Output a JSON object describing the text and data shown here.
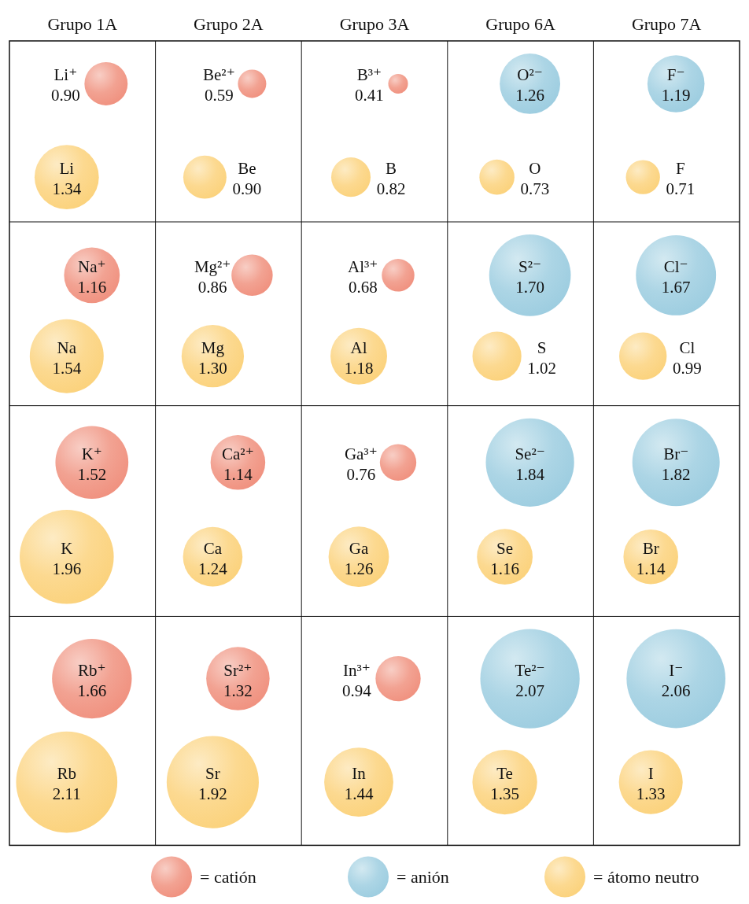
{
  "chart_data": {
    "type": "other",
    "annotations": [
      "Grupo 1A",
      "Grupo 2A",
      "Grupo 3A",
      "Grupo 6A",
      "Grupo 7A"
    ],
    "data_labels": true,
    "legend": "bottom",
    "categories": [
      "Li⁺",
      "Be²⁺",
      "B³⁺",
      "O²⁻",
      "F⁻",
      "Li",
      "Be",
      "B",
      "O",
      "F",
      "Na⁺",
      "Mg²⁺",
      "Al³⁺",
      "S²⁻",
      "Cl⁻",
      "Na",
      "Mg",
      "Al",
      "S",
      "Cl",
      "K⁺",
      "Ca²⁺",
      "Ga³⁺",
      "Se²⁻",
      "Br⁻",
      "K",
      "Ca",
      "Ga",
      "Se",
      "Br",
      "Rb⁺",
      "Sr²⁺",
      "In³⁺",
      "Te²⁻",
      "I⁻",
      "Rb",
      "Sr",
      "In",
      "Te",
      "I"
    ],
    "series": [
      {
        "name": "= catión",
        "color": "#f0917f",
        "values": [
          0.9,
          0.59,
          0.41,
          null,
          null,
          null,
          null,
          null,
          null,
          null,
          1.16,
          0.86,
          0.68,
          null,
          null,
          null,
          null,
          null,
          null,
          null,
          1.52,
          1.14,
          0.76,
          null,
          null,
          null,
          null,
          null,
          null,
          null,
          1.66,
          1.32,
          0.94,
          null,
          null,
          null,
          null,
          null,
          null,
          null
        ],
        "value_labels": [
          "0.90",
          "0.59",
          "0.41",
          null,
          null,
          null,
          null,
          null,
          null,
          null,
          "1.16",
          "0.86",
          "0.68",
          null,
          null,
          null,
          null,
          null,
          null,
          null,
          "1.52",
          "1.14",
          "0.76",
          null,
          null,
          null,
          null,
          null,
          null,
          null,
          "1.66",
          "1.32",
          "0.94",
          null,
          null,
          null,
          null,
          null,
          null,
          null
        ]
      },
      {
        "name": "= anión",
        "color": "#9dcde0",
        "values": [
          null,
          null,
          null,
          1.26,
          1.19,
          null,
          null,
          null,
          null,
          null,
          null,
          null,
          null,
          1.7,
          1.67,
          null,
          null,
          null,
          null,
          null,
          null,
          null,
          null,
          1.84,
          1.82,
          null,
          null,
          null,
          null,
          null,
          null,
          null,
          null,
          2.07,
          2.06,
          null,
          null,
          null,
          null,
          null
        ],
        "value_labels": [
          null,
          null,
          null,
          "1.26",
          "1.19",
          null,
          null,
          null,
          null,
          null,
          null,
          null,
          null,
          "1.70",
          "1.67",
          null,
          null,
          null,
          null,
          null,
          null,
          null,
          null,
          "1.84",
          "1.82",
          null,
          null,
          null,
          null,
          null,
          null,
          null,
          null,
          "2.07",
          "2.06",
          null,
          null,
          null,
          null,
          null
        ]
      },
      {
        "name": "= átomo neutro",
        "color": "#fbd27c",
        "values": [
          null,
          null,
          null,
          null,
          null,
          1.34,
          0.9,
          0.82,
          0.73,
          0.71,
          null,
          null,
          null,
          null,
          null,
          1.54,
          1.3,
          1.18,
          1.02,
          0.99,
          null,
          null,
          null,
          null,
          null,
          1.96,
          1.24,
          1.26,
          1.16,
          1.14,
          null,
          null,
          null,
          null,
          null,
          2.11,
          1.92,
          1.44,
          1.35,
          1.33
        ],
        "value_labels": [
          null,
          null,
          null,
          null,
          null,
          "1.34",
          "0.90",
          "0.82",
          "0.73",
          "0.71",
          null,
          null,
          null,
          null,
          null,
          "1.54",
          "1.30",
          "1.18",
          "1.02",
          "0.99",
          null,
          null,
          null,
          null,
          null,
          "1.96",
          "1.24",
          "1.26",
          "1.16",
          "1.14",
          null,
          null,
          null,
          null,
          null,
          "2.11",
          "1.92",
          "1.44",
          "1.35",
          "1.33"
        ]
      }
    ]
  }
}
